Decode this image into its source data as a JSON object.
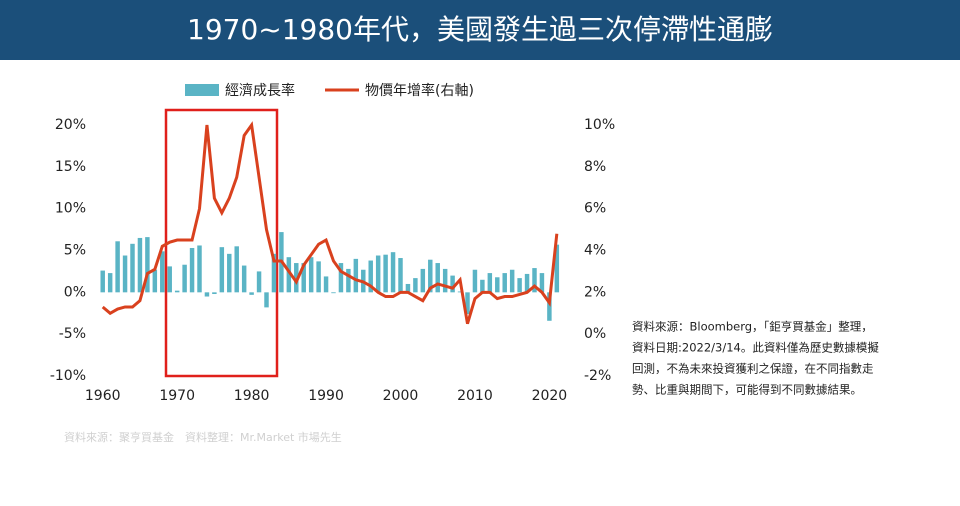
{
  "chart_data": {
    "type": "bar_line",
    "title": "1970~1980年代，美國發生過三次停滯性通膨",
    "x": [
      1960,
      1961,
      1962,
      1963,
      1964,
      1965,
      1966,
      1967,
      1968,
      1969,
      1970,
      1971,
      1972,
      1973,
      1974,
      1975,
      1976,
      1977,
      1978,
      1979,
      1980,
      1981,
      1982,
      1983,
      1984,
      1985,
      1986,
      1987,
      1988,
      1989,
      1990,
      1991,
      1992,
      1993,
      1994,
      1995,
      1996,
      1997,
      1998,
      1999,
      2000,
      2001,
      2002,
      2003,
      2004,
      2005,
      2006,
      2007,
      2008,
      2009,
      2010,
      2011,
      2012,
      2013,
      2014,
      2015,
      2016,
      2017,
      2018,
      2019,
      2020,
      2021
    ],
    "series": [
      {
        "name": "經濟成長率",
        "color": "#5ab4c5",
        "type": "bar",
        "values": [
          2.6,
          2.3,
          6.1,
          4.4,
          5.8,
          6.5,
          6.6,
          2.7,
          4.9,
          3.1,
          0.2,
          3.3,
          5.3,
          5.6,
          -0.5,
          -0.2,
          5.4,
          4.6,
          5.5,
          3.2,
          -0.3,
          2.5,
          -1.8,
          4.6,
          7.2,
          4.2,
          3.5,
          3.5,
          4.2,
          3.7,
          1.9,
          -0.1,
          3.5,
          2.8,
          4.0,
          2.7,
          3.8,
          4.4,
          4.5,
          4.8,
          4.1,
          1.0,
          1.7,
          2.8,
          3.9,
          3.5,
          2.8,
          2.0,
          0.1,
          -2.6,
          2.7,
          1.5,
          2.3,
          1.8,
          2.3,
          2.7,
          1.7,
          2.2,
          2.9,
          2.3,
          -3.4,
          5.7
        ]
      },
      {
        "name": "物價年增率(右軸)",
        "color": "#d9411e",
        "type": "line",
        "axis": "y2",
        "values": [
          1.3,
          1.0,
          1.2,
          1.3,
          1.3,
          1.6,
          2.9,
          3.1,
          4.2,
          4.4,
          4.5,
          4.5,
          4.5,
          6.0,
          10.0,
          6.5,
          5.8,
          6.5,
          7.5,
          9.5,
          10.0,
          7.5,
          5.0,
          3.5,
          3.5,
          3.0,
          2.5,
          3.3,
          3.8,
          4.3,
          4.5,
          3.5,
          3.0,
          2.8,
          2.6,
          2.5,
          2.3,
          2.0,
          1.8,
          1.8,
          2.0,
          2.0,
          1.8,
          1.6,
          2.2,
          2.4,
          2.3,
          2.2,
          2.6,
          0.5,
          1.7,
          2.0,
          2.0,
          1.7,
          1.8,
          1.8,
          1.9,
          2.0,
          2.3,
          2.0,
          1.5,
          4.8
        ]
      }
    ],
    "xlim": [
      1959.5,
      2022.5
    ],
    "xticks": [
      1960,
      1970,
      1980,
      1990,
      2000,
      2010,
      2020
    ],
    "ylim": [
      -10,
      20
    ],
    "yticks": [
      {
        "value": -10,
        "label": "-10%"
      },
      {
        "value": -5,
        "label": "-5%"
      },
      {
        "value": 0,
        "label": "0%"
      },
      {
        "value": 5,
        "label": "5%"
      },
      {
        "value": 10,
        "label": "10%"
      },
      {
        "value": 15,
        "label": "15%"
      },
      {
        "value": 20,
        "label": "20%"
      }
    ],
    "y2lim": [
      -2,
      10
    ],
    "y2ticks": [
      {
        "value": -2,
        "label": "-2%"
      },
      {
        "value": 0,
        "label": "0%"
      },
      {
        "value": 2,
        "label": "2%"
      },
      {
        "value": 4,
        "label": "4%"
      },
      {
        "value": 6,
        "label": "6%"
      },
      {
        "value": 8,
        "label": "8%"
      },
      {
        "value": 10,
        "label": "10%"
      }
    ],
    "note": [
      "資料來源：Bloomberg，「鉅亨買基金」整理，",
      "資料日期:2022/3/14。此資料僅為歷史數據模擬",
      "回測，不為未來投資獲利之保證，在不同指數走",
      "勢、比重與期間下，可能得到不同數據結果。"
    ],
    "source": "資料來源：聚亨買基金　資料整理：Mr.Market  市場先生"
  }
}
